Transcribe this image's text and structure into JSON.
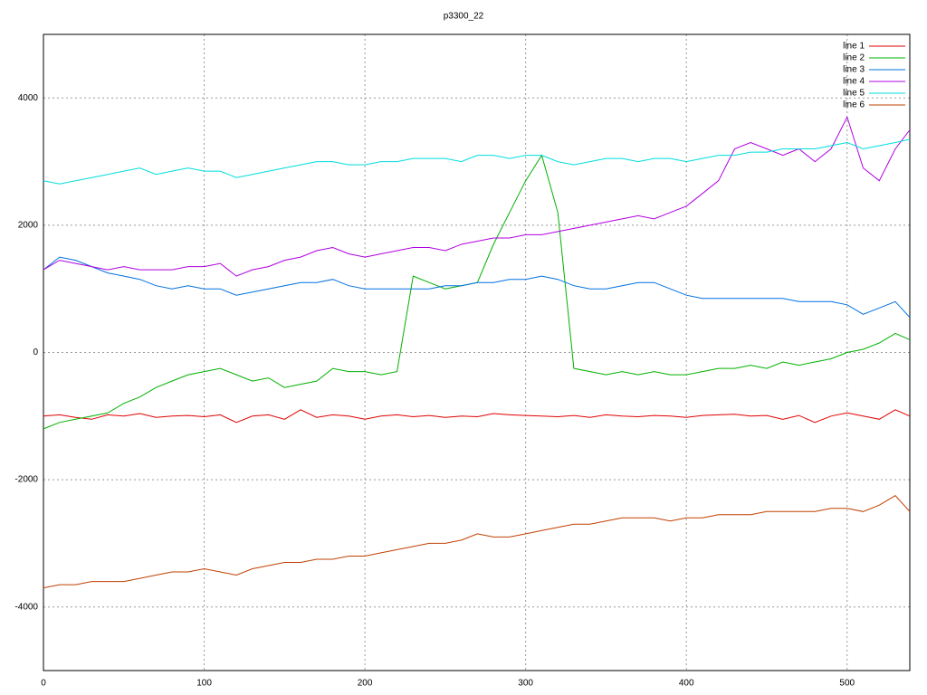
{
  "chart_data": {
    "type": "line",
    "title": "p3300_22",
    "x": [
      0,
      10,
      20,
      30,
      40,
      50,
      60,
      70,
      80,
      90,
      100,
      110,
      120,
      130,
      140,
      150,
      160,
      170,
      180,
      190,
      200,
      210,
      220,
      230,
      240,
      250,
      260,
      270,
      280,
      290,
      300,
      310,
      320,
      330,
      340,
      350,
      360,
      370,
      380,
      390,
      400,
      410,
      420,
      430,
      440,
      450,
      460,
      470,
      480,
      490,
      500,
      510,
      520,
      530,
      539
    ],
    "series": [
      {
        "name": "line 1",
        "color": "#e00000",
        "values": [
          -1000,
          -980,
          -1020,
          -1050,
          -980,
          -1000,
          -960,
          -1020,
          -1000,
          -990,
          -1010,
          -980,
          -1100,
          -1000,
          -980,
          -1050,
          -900,
          -1020,
          -980,
          -1000,
          -1050,
          -1000,
          -980,
          -1010,
          -990,
          -1020,
          -1000,
          -1010,
          -960,
          -980,
          -990,
          -1000,
          -1010,
          -990,
          -1020,
          -980,
          -1000,
          -1010,
          -990,
          -1000,
          -1020,
          -990,
          -980,
          -970,
          -1000,
          -990,
          -1050,
          -990,
          -1100,
          -1000,
          -950,
          -1000,
          -1050,
          -900,
          -1000
        ]
      },
      {
        "name": "line 2",
        "color": "#00b000",
        "values": [
          -1200,
          -1100,
          -1050,
          -1000,
          -950,
          -800,
          -700,
          -550,
          -450,
          -350,
          -300,
          -250,
          -350,
          -450,
          -400,
          -550,
          -500,
          -450,
          -250,
          -300,
          -300,
          -350,
          -300,
          1200,
          1100,
          1000,
          1050,
          1100,
          1700,
          2200,
          2700,
          3100,
          2200,
          -250,
          -300,
          -350,
          -300,
          -350,
          -300,
          -350,
          -350,
          -300,
          -250,
          -250,
          -200,
          -250,
          -150,
          -200,
          -150,
          -100,
          0,
          50,
          150,
          300,
          200
        ]
      },
      {
        "name": "line 3",
        "color": "#0070e0",
        "values": [
          1300,
          1500,
          1450,
          1350,
          1250,
          1200,
          1150,
          1050,
          1000,
          1050,
          1000,
          1000,
          900,
          950,
          1000,
          1050,
          1100,
          1100,
          1150,
          1050,
          1000,
          1000,
          1000,
          1000,
          1000,
          1050,
          1050,
          1100,
          1100,
          1150,
          1150,
          1200,
          1150,
          1050,
          1000,
          1000,
          1050,
          1100,
          1100,
          1000,
          900,
          850,
          850,
          850,
          850,
          850,
          850,
          800,
          800,
          800,
          750,
          600,
          700,
          800,
          550
        ]
      },
      {
        "name": "line 4",
        "color": "#b000e0",
        "values": [
          1300,
          1450,
          1400,
          1350,
          1300,
          1350,
          1300,
          1300,
          1300,
          1350,
          1350,
          1400,
          1200,
          1300,
          1350,
          1450,
          1500,
          1600,
          1650,
          1550,
          1500,
          1550,
          1600,
          1650,
          1650,
          1600,
          1700,
          1750,
          1800,
          1800,
          1850,
          1850,
          1900,
          1950,
          2000,
          2050,
          2100,
          2150,
          2100,
          2200,
          2300,
          2500,
          2700,
          3200,
          3300,
          3200,
          3100,
          3200,
          3000,
          3200,
          3700,
          2900,
          2700,
          3200,
          3500
        ]
      },
      {
        "name": "line 5",
        "color": "#00dddd",
        "values": [
          2700,
          2650,
          2700,
          2750,
          2800,
          2850,
          2900,
          2800,
          2850,
          2900,
          2850,
          2850,
          2750,
          2800,
          2850,
          2900,
          2950,
          3000,
          3000,
          2950,
          2950,
          3000,
          3000,
          3050,
          3050,
          3050,
          3000,
          3100,
          3100,
          3050,
          3100,
          3100,
          3000,
          2950,
          3000,
          3050,
          3050,
          3000,
          3050,
          3050,
          3000,
          3050,
          3100,
          3100,
          3150,
          3150,
          3200,
          3200,
          3200,
          3250,
          3300,
          3200,
          3250,
          3300,
          3350
        ]
      },
      {
        "name": "line 6",
        "color": "#c04000",
        "values": [
          -3700,
          -3650,
          -3650,
          -3600,
          -3600,
          -3600,
          -3550,
          -3500,
          -3450,
          -3450,
          -3400,
          -3450,
          -3500,
          -3400,
          -3350,
          -3300,
          -3300,
          -3250,
          -3250,
          -3200,
          -3200,
          -3150,
          -3100,
          -3050,
          -3000,
          -3000,
          -2950,
          -2850,
          -2900,
          -2900,
          -2850,
          -2800,
          -2750,
          -2700,
          -2700,
          -2650,
          -2600,
          -2600,
          -2600,
          -2650,
          -2600,
          -2600,
          -2550,
          -2550,
          -2550,
          -2500,
          -2500,
          -2500,
          -2500,
          -2450,
          -2450,
          -2500,
          -2400,
          -2250,
          -2500
        ]
      }
    ],
    "xlim": [
      0,
      539
    ],
    "ylim": [
      -5000,
      5000
    ],
    "xticks": [
      0,
      100,
      200,
      300,
      400,
      500
    ],
    "yticks": [
      -4000,
      -2000,
      0,
      2000,
      4000
    ],
    "grid": true,
    "legend": "top-right"
  }
}
